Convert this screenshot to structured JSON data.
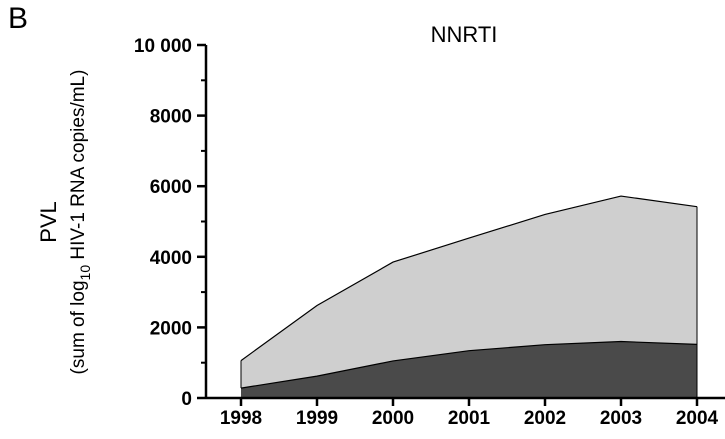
{
  "panel_label": "B",
  "chart_data": {
    "type": "area",
    "title": "NNRTI",
    "ylabel": "PVL",
    "ylabel_sub": {
      "before": "(sum of log",
      "subscript": "10",
      "after": " HIV-1 RNA copies/mL)"
    },
    "xlabel": "",
    "x": [
      1998,
      1999,
      2000,
      2001,
      2002,
      2003,
      2004
    ],
    "ylim": [
      0,
      10000
    ],
    "yticks": [
      0,
      2000,
      4000,
      6000,
      8000,
      10000
    ],
    "ytick_labels": [
      "0",
      "2000",
      "4000",
      "6000",
      "8000",
      "10 000"
    ],
    "stacked": true,
    "series": [
      {
        "values": [
          280,
          620,
          1050,
          1340,
          1510,
          1600,
          1520
        ],
        "color": "#4a4a4a"
      },
      {
        "values": [
          780,
          2000,
          2800,
          3190,
          3690,
          4120,
          3900
        ],
        "color": "#cfcfcf"
      }
    ],
    "grid": false
  }
}
